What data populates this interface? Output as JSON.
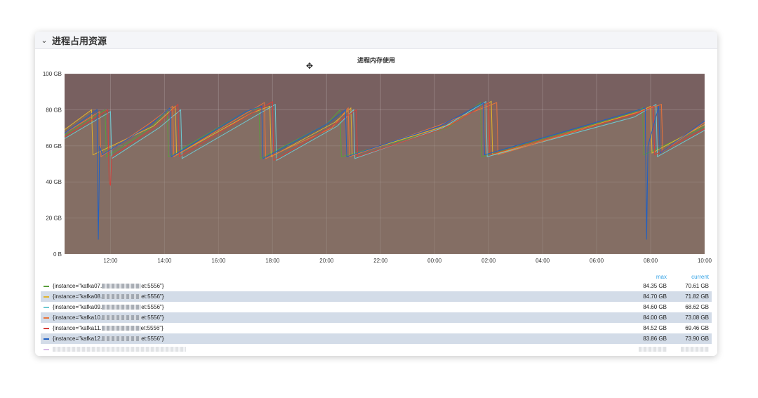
{
  "row": {
    "title": "进程占用资源",
    "chevron_icon": "chevron-down-icon"
  },
  "panel": {
    "title": "进程内存使用",
    "move_icon": "move-icon"
  },
  "legend": {
    "headers": {
      "max": "max",
      "current": "current"
    },
    "rows": [
      {
        "prefix": "{instance=\"kafka07.",
        "suffix": "et:5556\"}",
        "max": "84.35 GB",
        "current": "70.61 GB",
        "color": "#5a9e3c"
      },
      {
        "prefix": "{instance=\"kafka08.",
        "suffix": "et:5556\"}",
        "max": "84.70 GB",
        "current": "71.82 GB",
        "color": "#e0b32e"
      },
      {
        "prefix": "{instance=\"kafka09.",
        "suffix": "et:5556\"}",
        "max": "84.60 GB",
        "current": "68.62 GB",
        "color": "#6ec8d0"
      },
      {
        "prefix": "{instance=\"kafka10.",
        "suffix": "et:5556\"}",
        "max": "84.00 GB",
        "current": "73.08 GB",
        "color": "#e8743b"
      },
      {
        "prefix": "{instance=\"kafka11.",
        "suffix": "et:5556\"}",
        "max": "84.52 GB",
        "current": "69.46 GB",
        "color": "#d6403b"
      },
      {
        "prefix": "{instance=\"kafka12.",
        "suffix": "et:5556\"}",
        "max": "83.86 GB",
        "current": "73.90 GB",
        "color": "#1f60c4"
      }
    ]
  },
  "chart_data": {
    "type": "area",
    "title": "进程内存使用",
    "xlabel": "",
    "ylabel": "",
    "y_ticks": [
      "100 GB",
      "80 GB",
      "60 GB",
      "40 GB",
      "20 GB",
      "0 B"
    ],
    "y_tick_values": [
      100,
      80,
      60,
      40,
      20,
      0
    ],
    "ylim": [
      0,
      100
    ],
    "x_ticks": [
      "12:00",
      "14:00",
      "16:00",
      "18:00",
      "20:00",
      "22:00",
      "00:00",
      "02:00",
      "04:00",
      "06:00",
      "08:00",
      "10:00"
    ],
    "x_tick_hours": [
      12,
      14,
      16,
      18,
      20,
      22,
      24,
      26,
      28,
      30,
      32,
      34
    ],
    "xlim_hours": [
      10.3,
      34
    ],
    "x_unit": "hours",
    "grid": true,
    "legend_placement": "bottom",
    "series": [
      {
        "name": "{instance=\"kafka07.…et:5556\"}",
        "color": "#5a9e3c",
        "max": 84.35,
        "current": 70.61,
        "x": [
          10.3,
          11.8,
          11.85,
          13.5,
          14.1,
          14.15,
          17.0,
          17.5,
          17.55,
          20.0,
          20.5,
          20.55,
          24.5,
          25.7,
          25.75,
          31.3,
          31.7,
          31.75,
          34
        ],
        "y": [
          66,
          80,
          54,
          70,
          80,
          54,
          79,
          81,
          53,
          72,
          80,
          54,
          70,
          84,
          54,
          78,
          81,
          55,
          70.61
        ]
      },
      {
        "name": "{instance=\"kafka08.…et:5556\"}",
        "color": "#e0b32e",
        "max": 84.7,
        "current": 71.82,
        "x": [
          10.3,
          11.3,
          11.35,
          13.6,
          14.4,
          14.45,
          17.2,
          17.9,
          17.95,
          20.3,
          20.9,
          20.95,
          24.6,
          26.1,
          26.15,
          31.6,
          32.0,
          32.05,
          34
        ],
        "y": [
          69,
          80,
          55,
          71,
          82,
          55,
          78,
          82,
          54,
          73,
          81,
          55,
          72,
          84.7,
          55,
          79,
          82,
          56,
          71.82
        ]
      },
      {
        "name": "{instance=\"kafka09.…et:5556\"}",
        "color": "#6ec8d0",
        "max": 84.6,
        "current": 68.62,
        "x": [
          10.3,
          12.0,
          12.05,
          13.8,
          14.6,
          14.65,
          17.3,
          18.1,
          18.15,
          20.4,
          21.0,
          21.05,
          24.3,
          25.9,
          25.95,
          31.4,
          32.2,
          32.25,
          34
        ],
        "y": [
          64,
          79,
          53,
          70,
          80,
          53,
          76,
          83,
          52,
          71,
          80,
          53,
          70,
          84.6,
          54,
          76,
          83,
          54,
          68.62
        ]
      },
      {
        "name": "{instance=\"kafka10.…et:5556\"}",
        "color": "#e8743b",
        "max": 84.0,
        "current": 73.08,
        "x": [
          10.3,
          11.6,
          11.65,
          13.4,
          14.3,
          14.35,
          16.9,
          17.7,
          17.75,
          20.2,
          20.8,
          20.85,
          24.1,
          26.3,
          26.35,
          31.2,
          32.4,
          32.45,
          34
        ],
        "y": [
          67,
          79,
          54,
          72,
          82,
          54,
          77,
          84,
          53,
          70,
          81,
          54,
          71,
          84,
          55,
          77,
          83,
          57,
          73.08
        ]
      },
      {
        "name": "{instance=\"kafka11.…et:5556\"}",
        "color": "#d6403b",
        "max": 84.52,
        "current": 69.46,
        "x": [
          10.3,
          11.9,
          11.95,
          12.0,
          12.05,
          13.7,
          14.5,
          14.55,
          17.1,
          18.0,
          18.05,
          20.1,
          21.1,
          21.15,
          24.4,
          26.0,
          26.05,
          31.5,
          32.1,
          32.15,
          34
        ],
        "y": [
          65,
          80,
          40,
          38,
          54,
          71,
          83,
          54,
          77,
          84.5,
          52,
          70,
          80,
          54,
          70,
          84,
          55,
          78,
          82,
          55,
          69.46
        ]
      },
      {
        "name": "{instance=\"kafka12.…et:5556\"}",
        "color": "#1f60c4",
        "max": 83.86,
        "current": 73.9,
        "x": [
          10.3,
          11.5,
          11.55,
          11.6,
          11.7,
          13.5,
          14.2,
          14.25,
          17.0,
          17.6,
          17.65,
          20.0,
          20.7,
          20.75,
          24.2,
          25.8,
          25.85,
          31.8,
          31.85,
          31.9,
          32.3,
          32.35,
          34
        ],
        "y": [
          67,
          80,
          8,
          60,
          55,
          72,
          81,
          54,
          79,
          82,
          53,
          72,
          80,
          54,
          71,
          83.86,
          55,
          81,
          8,
          60,
          82,
          56,
          73.9
        ]
      }
    ]
  }
}
